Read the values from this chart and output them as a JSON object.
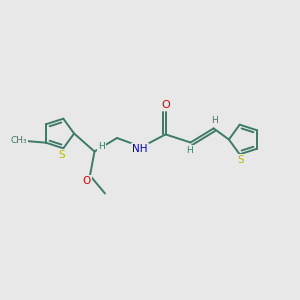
{
  "background_color": "#e8e8e8",
  "bond_color": "#3d7a68",
  "bond_width": 1.4,
  "atom_colors": {
    "O": "#dd0000",
    "N": "#0000cc",
    "S": "#bbbb00",
    "C": "#3d7a68",
    "H": "#3d7a68"
  },
  "figsize": [
    3.0,
    3.0
  ],
  "dpi": 100
}
